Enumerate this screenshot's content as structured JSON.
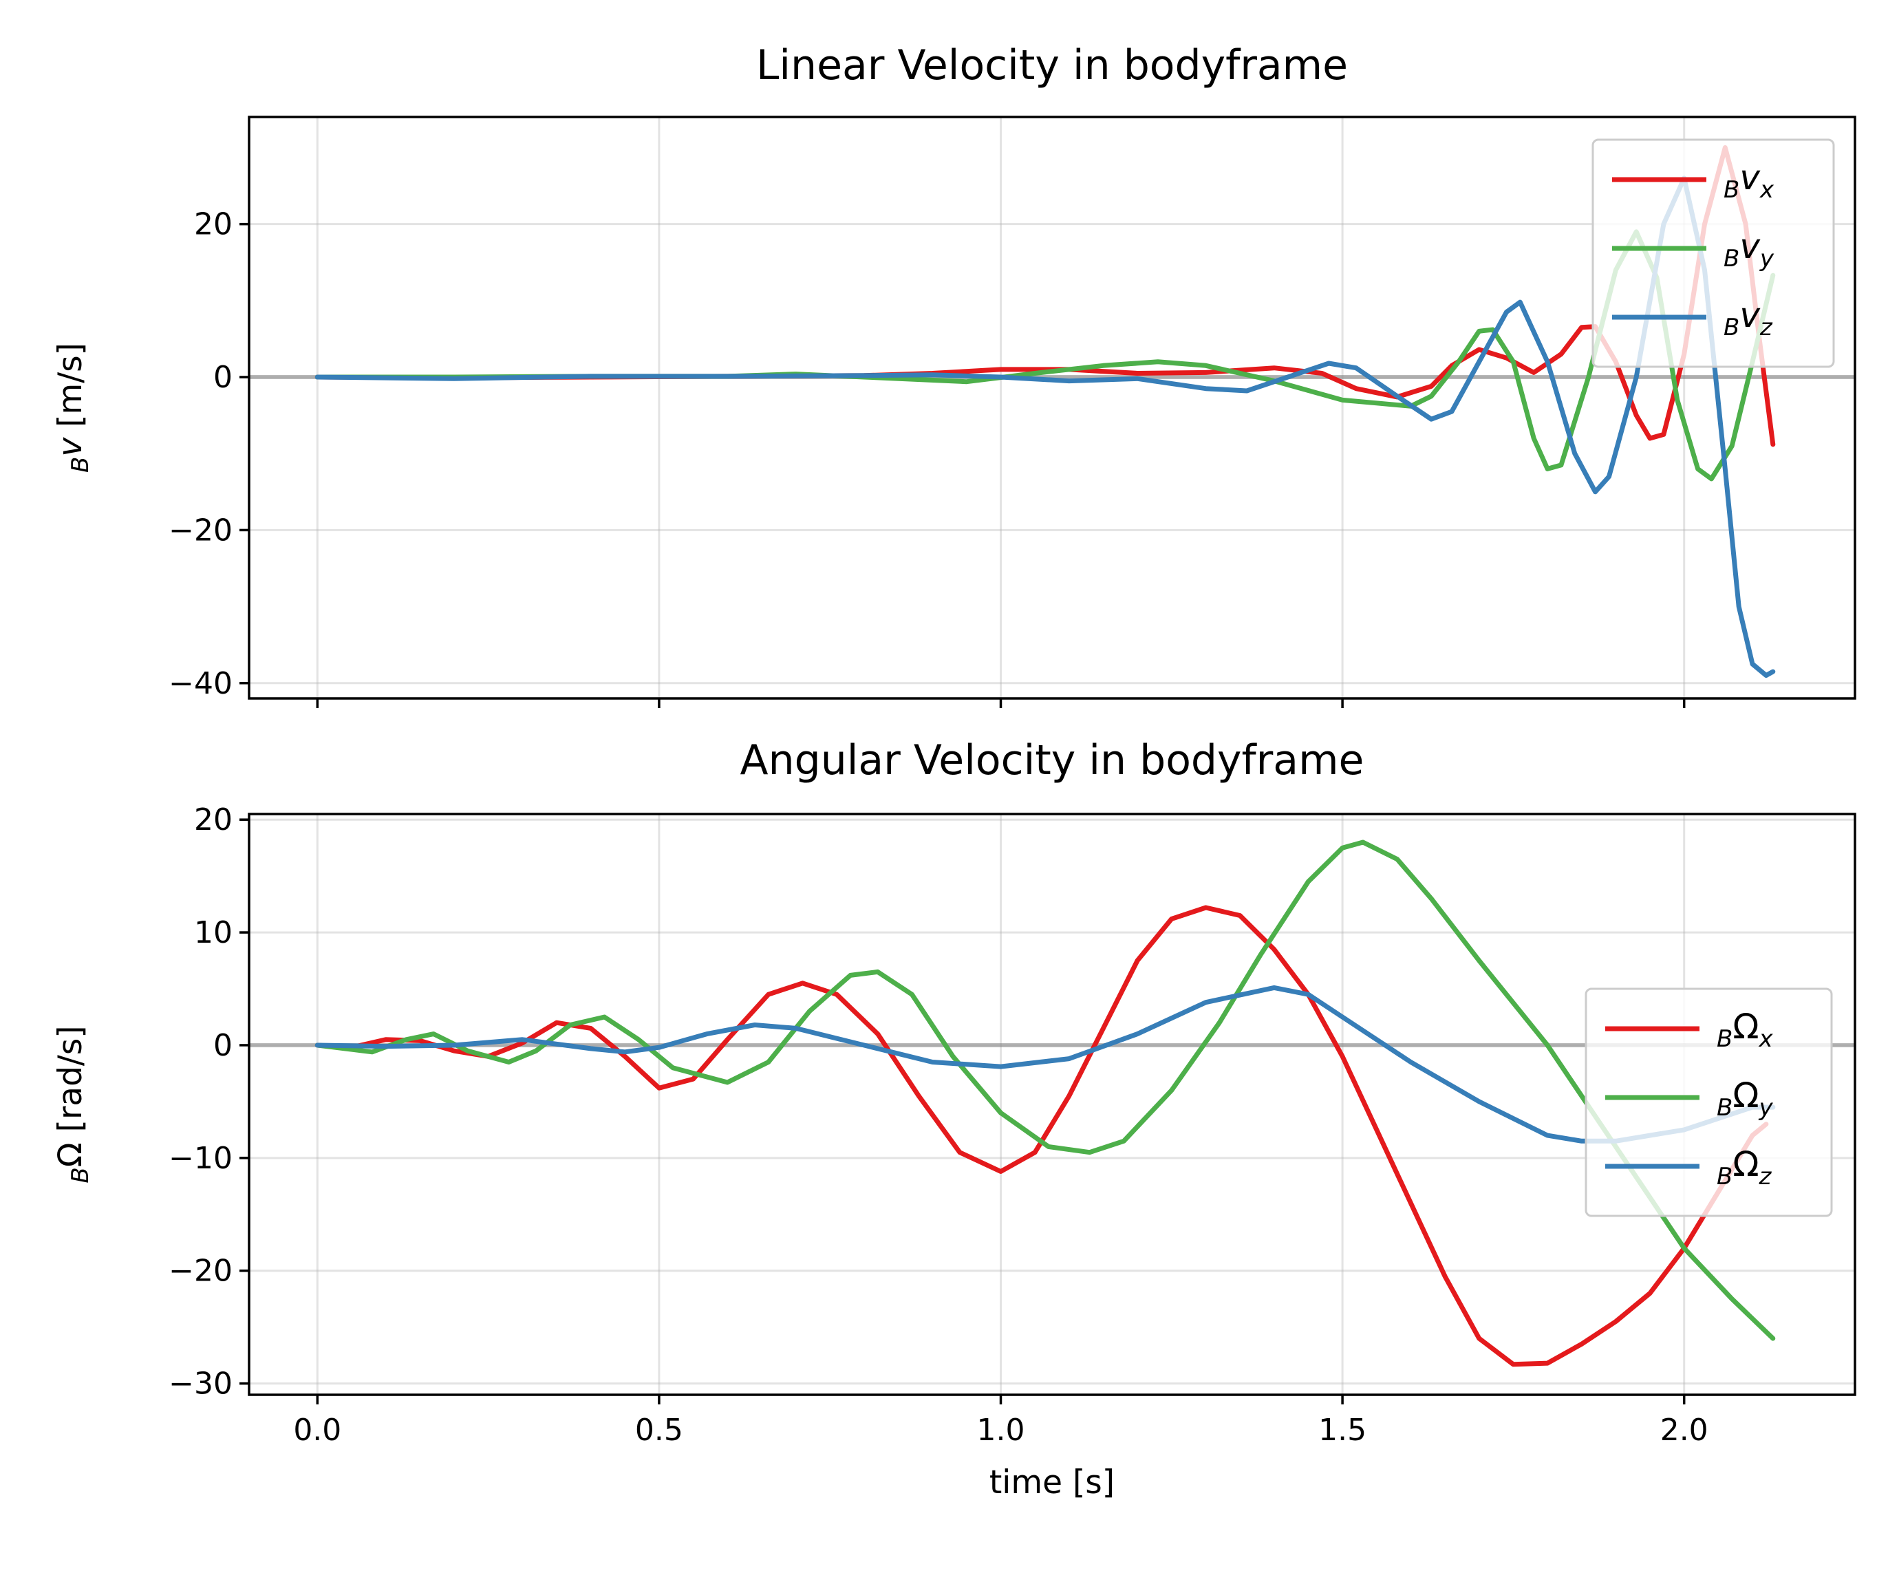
{
  "chart_data": [
    {
      "type": "line",
      "title": "Linear Velocity in bodyframe",
      "xlabel": "",
      "ylabel_sub": "B",
      "ylabel_main": "v",
      "ylabel_unit": " [m/s]",
      "xlim": [
        -0.1,
        2.25
      ],
      "ylim": [
        -42,
        34
      ],
      "xticks": [
        0.0,
        0.5,
        1.0,
        1.5,
        2.0
      ],
      "yticks": [
        -40,
        -20,
        0,
        20
      ],
      "ytick_labels": [
        "−40",
        "−20",
        "0",
        "20"
      ],
      "grid": true,
      "legend_position": "upper right",
      "zero_line": true,
      "series": [
        {
          "name": "Bvx",
          "legend": {
            "sub": "B",
            "main": "v",
            "idx": "x"
          },
          "color": "#e41a1c",
          "points": [
            [
              0.0,
              0.0
            ],
            [
              0.2,
              -0.1
            ],
            [
              0.4,
              0.0
            ],
            [
              0.6,
              0.1
            ],
            [
              0.8,
              0.2
            ],
            [
              0.9,
              0.5
            ],
            [
              1.0,
              1.0
            ],
            [
              1.1,
              1.0
            ],
            [
              1.2,
              0.5
            ],
            [
              1.3,
              0.6
            ],
            [
              1.4,
              1.2
            ],
            [
              1.47,
              0.5
            ],
            [
              1.52,
              -1.5
            ],
            [
              1.58,
              -2.6
            ],
            [
              1.63,
              -1.2
            ],
            [
              1.66,
              1.5
            ],
            [
              1.7,
              3.6
            ],
            [
              1.74,
              2.5
            ],
            [
              1.78,
              0.6
            ],
            [
              1.82,
              3.0
            ],
            [
              1.85,
              6.5
            ],
            [
              1.87,
              6.6
            ],
            [
              1.9,
              2.0
            ],
            [
              1.93,
              -5.0
            ],
            [
              1.95,
              -8.0
            ],
            [
              1.97,
              -7.5
            ],
            [
              2.0,
              3.0
            ],
            [
              2.03,
              20.0
            ],
            [
              2.06,
              30.0
            ],
            [
              2.09,
              20.0
            ],
            [
              2.11,
              5.0
            ],
            [
              2.13,
              -8.8
            ]
          ]
        },
        {
          "name": "Bvy",
          "legend": {
            "sub": "B",
            "main": "v",
            "idx": "y"
          },
          "color": "#4daf4a",
          "points": [
            [
              0.0,
              0.0
            ],
            [
              0.2,
              0.0
            ],
            [
              0.4,
              0.1
            ],
            [
              0.6,
              0.1
            ],
            [
              0.7,
              0.4
            ],
            [
              0.8,
              0.0
            ],
            [
              0.95,
              -0.6
            ],
            [
              1.05,
              0.5
            ],
            [
              1.15,
              1.5
            ],
            [
              1.23,
              2.0
            ],
            [
              1.3,
              1.5
            ],
            [
              1.4,
              -0.5
            ],
            [
              1.5,
              -3.0
            ],
            [
              1.55,
              -3.4
            ],
            [
              1.6,
              -3.8
            ],
            [
              1.63,
              -2.5
            ],
            [
              1.67,
              2.0
            ],
            [
              1.7,
              6.0
            ],
            [
              1.72,
              6.2
            ],
            [
              1.75,
              2.0
            ],
            [
              1.78,
              -8.0
            ],
            [
              1.8,
              -12.0
            ],
            [
              1.82,
              -11.5
            ],
            [
              1.86,
              0.0
            ],
            [
              1.9,
              14.0
            ],
            [
              1.93,
              19.0
            ],
            [
              1.96,
              13.0
            ],
            [
              1.99,
              -3.0
            ],
            [
              2.02,
              -12.0
            ],
            [
              2.04,
              -13.3
            ],
            [
              2.07,
              -9.0
            ],
            [
              2.1,
              2.0
            ],
            [
              2.13,
              13.3
            ]
          ]
        },
        {
          "name": "Bvz",
          "legend": {
            "sub": "B",
            "main": "v",
            "idx": "z"
          },
          "color": "#377eb8",
          "points": [
            [
              0.0,
              0.0
            ],
            [
              0.2,
              -0.2
            ],
            [
              0.4,
              0.1
            ],
            [
              0.6,
              0.1
            ],
            [
              0.8,
              0.2
            ],
            [
              0.9,
              0.3
            ],
            [
              1.0,
              0.0
            ],
            [
              1.1,
              -0.5
            ],
            [
              1.2,
              -0.2
            ],
            [
              1.3,
              -1.5
            ],
            [
              1.36,
              -1.8
            ],
            [
              1.42,
              0.0
            ],
            [
              1.48,
              1.8
            ],
            [
              1.52,
              1.2
            ],
            [
              1.58,
              -2.5
            ],
            [
              1.63,
              -5.5
            ],
            [
              1.66,
              -4.5
            ],
            [
              1.7,
              2.0
            ],
            [
              1.74,
              8.5
            ],
            [
              1.76,
              9.8
            ],
            [
              1.8,
              2.0
            ],
            [
              1.84,
              -10.0
            ],
            [
              1.87,
              -15.0
            ],
            [
              1.89,
              -13.0
            ],
            [
              1.93,
              0.0
            ],
            [
              1.97,
              20.0
            ],
            [
              2.0,
              26.0
            ],
            [
              2.03,
              14.0
            ],
            [
              2.06,
              -12.0
            ],
            [
              2.08,
              -30.0
            ],
            [
              2.1,
              -37.5
            ],
            [
              2.12,
              -39.0
            ],
            [
              2.13,
              -38.5
            ]
          ]
        }
      ]
    },
    {
      "type": "line",
      "title": "Angular Velocity in bodyframe",
      "xlabel": "time [s]",
      "ylabel_sub": "B",
      "ylabel_main": "Ω",
      "ylabel_unit": " [rad/s]",
      "xlim": [
        -0.1,
        2.25
      ],
      "ylim": [
        -31,
        20.5
      ],
      "xticks": [
        0.0,
        0.5,
        1.0,
        1.5,
        2.0
      ],
      "xtick_labels": [
        "0.0",
        "0.5",
        "1.0",
        "1.5",
        "2.0"
      ],
      "yticks": [
        -30,
        -20,
        -10,
        0,
        10,
        20
      ],
      "ytick_labels": [
        "−30",
        "−20",
        "−10",
        "0",
        "10",
        "20"
      ],
      "grid": true,
      "legend_position": "center right",
      "zero_line": true,
      "series": [
        {
          "name": "BΩx",
          "legend": {
            "sub": "B",
            "main": "Ω",
            "idx": "x"
          },
          "color": "#e41a1c",
          "points": [
            [
              0.0,
              0.0
            ],
            [
              0.05,
              -0.2
            ],
            [
              0.1,
              0.5
            ],
            [
              0.15,
              0.4
            ],
            [
              0.2,
              -0.5
            ],
            [
              0.25,
              -1.0
            ],
            [
              0.3,
              0.2
            ],
            [
              0.35,
              2.0
            ],
            [
              0.4,
              1.5
            ],
            [
              0.45,
              -1.0
            ],
            [
              0.5,
              -3.8
            ],
            [
              0.55,
              -3.0
            ],
            [
              0.6,
              0.5
            ],
            [
              0.66,
              4.5
            ],
            [
              0.71,
              5.5
            ],
            [
              0.76,
              4.5
            ],
            [
              0.82,
              1.0
            ],
            [
              0.88,
              -4.5
            ],
            [
              0.94,
              -9.5
            ],
            [
              1.0,
              -11.2
            ],
            [
              1.05,
              -9.5
            ],
            [
              1.1,
              -4.5
            ],
            [
              1.15,
              1.5
            ],
            [
              1.2,
              7.5
            ],
            [
              1.25,
              11.2
            ],
            [
              1.3,
              12.2
            ],
            [
              1.35,
              11.5
            ],
            [
              1.4,
              8.5
            ],
            [
              1.45,
              4.5
            ],
            [
              1.5,
              -1.0
            ],
            [
              1.55,
              -7.5
            ],
            [
              1.6,
              -14.0
            ],
            [
              1.65,
              -20.5
            ],
            [
              1.7,
              -26.0
            ],
            [
              1.75,
              -28.3
            ],
            [
              1.8,
              -28.2
            ],
            [
              1.85,
              -26.5
            ],
            [
              1.9,
              -24.5
            ],
            [
              1.95,
              -22.0
            ],
            [
              2.0,
              -18.0
            ],
            [
              2.05,
              -13.0
            ],
            [
              2.1,
              -8.0
            ],
            [
              2.12,
              -7.0
            ]
          ]
        },
        {
          "name": "BΩy",
          "legend": {
            "sub": "B",
            "main": "Ω",
            "idx": "y"
          },
          "color": "#4daf4a",
          "points": [
            [
              0.0,
              0.0
            ],
            [
              0.08,
              -0.6
            ],
            [
              0.13,
              0.5
            ],
            [
              0.17,
              1.0
            ],
            [
              0.22,
              -0.5
            ],
            [
              0.28,
              -1.5
            ],
            [
              0.32,
              -0.5
            ],
            [
              0.37,
              1.8
            ],
            [
              0.42,
              2.5
            ],
            [
              0.47,
              0.5
            ],
            [
              0.52,
              -2.0
            ],
            [
              0.6,
              -3.3
            ],
            [
              0.66,
              -1.5
            ],
            [
              0.72,
              3.0
            ],
            [
              0.78,
              6.2
            ],
            [
              0.82,
              6.5
            ],
            [
              0.87,
              4.5
            ],
            [
              0.93,
              -1.0
            ],
            [
              1.0,
              -6.0
            ],
            [
              1.07,
              -9.0
            ],
            [
              1.13,
              -9.5
            ],
            [
              1.18,
              -8.5
            ],
            [
              1.25,
              -4.0
            ],
            [
              1.32,
              2.0
            ],
            [
              1.38,
              8.0
            ],
            [
              1.45,
              14.5
            ],
            [
              1.5,
              17.5
            ],
            [
              1.53,
              18.0
            ],
            [
              1.58,
              16.5
            ],
            [
              1.63,
              13.0
            ],
            [
              1.7,
              7.5
            ],
            [
              1.8,
              0.0
            ],
            [
              1.9,
              -9.0
            ],
            [
              2.0,
              -18.0
            ],
            [
              2.07,
              -22.5
            ],
            [
              2.13,
              -26.0
            ]
          ]
        },
        {
          "name": "BΩz",
          "legend": {
            "sub": "B",
            "main": "Ω",
            "idx": "z"
          },
          "color": "#377eb8",
          "points": [
            [
              0.0,
              0.0
            ],
            [
              0.1,
              -0.1
            ],
            [
              0.2,
              0.0
            ],
            [
              0.3,
              0.5
            ],
            [
              0.4,
              -0.3
            ],
            [
              0.45,
              -0.6
            ],
            [
              0.5,
              -0.2
            ],
            [
              0.57,
              1.0
            ],
            [
              0.64,
              1.8
            ],
            [
              0.7,
              1.5
            ],
            [
              0.8,
              0.0
            ],
            [
              0.9,
              -1.5
            ],
            [
              1.0,
              -1.9
            ],
            [
              1.1,
              -1.2
            ],
            [
              1.2,
              1.0
            ],
            [
              1.3,
              3.8
            ],
            [
              1.4,
              5.1
            ],
            [
              1.45,
              4.5
            ],
            [
              1.5,
              2.5
            ],
            [
              1.6,
              -1.5
            ],
            [
              1.7,
              -5.0
            ],
            [
              1.8,
              -8.0
            ],
            [
              1.85,
              -8.5
            ],
            [
              1.9,
              -8.5
            ],
            [
              2.0,
              -7.5
            ],
            [
              2.1,
              -5.5
            ],
            [
              2.13,
              -5.5
            ]
          ]
        }
      ]
    }
  ]
}
